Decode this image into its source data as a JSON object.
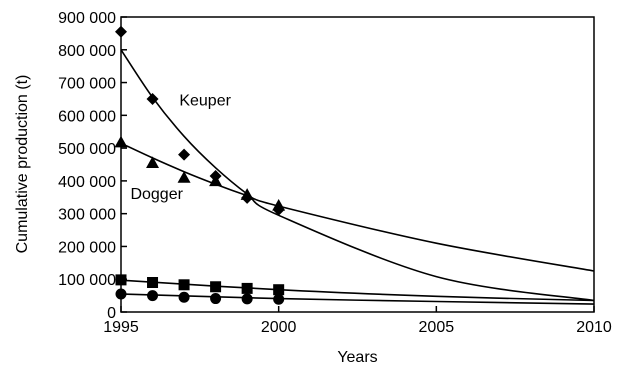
{
  "chart_data": {
    "type": "scatter",
    "title": "",
    "xlabel": "Years",
    "ylabel": "Cumulative production (t)",
    "xlim": [
      1995,
      2010
    ],
    "ylim": [
      0,
      900000
    ],
    "x_ticks": [
      1995,
      2000,
      2005,
      2010
    ],
    "x_tick_labels": [
      "1995",
      "2000",
      "2005",
      "2010"
    ],
    "y_ticks": [
      0,
      100000,
      200000,
      300000,
      400000,
      500000,
      600000,
      700000,
      800000,
      900000
    ],
    "y_tick_labels": [
      "0",
      "100 000",
      "200 000",
      "300 000",
      "400 000",
      "500 000",
      "600 000",
      "700 000",
      "800 000",
      "900 000"
    ],
    "grid": false,
    "legend": "none",
    "annotations": [
      {
        "text": "Keuper",
        "x": 1996.85,
        "y": 648000
      },
      {
        "text": "Dogger",
        "x": 1995.3,
        "y": 363000
      }
    ],
    "series": [
      {
        "marker": "diamond",
        "x": [
          1995,
          1996,
          1997,
          1998,
          1999,
          2000
        ],
        "y": [
          855000,
          650000,
          480000,
          415000,
          348000,
          312000
        ],
        "fit": {
          "x": [
            1995,
            1996,
            1997,
            1998,
            1999,
            2000,
            2005,
            2010
          ],
          "y": [
            800000,
            655000,
            536000,
            440000,
            360000,
            295000,
            108000,
            35000
          ]
        }
      },
      {
        "marker": "triangle",
        "x": [
          1995,
          1996,
          1997,
          1998,
          1999,
          2000
        ],
        "y": [
          518000,
          455000,
          410000,
          400000,
          358000,
          325000
        ],
        "fit": {
          "x": [
            1995,
            1996,
            1997,
            1998,
            1999,
            2000,
            2005,
            2010
          ],
          "y": [
            515000,
            470000,
            428000,
            390000,
            355000,
            323000,
            210000,
            125000
          ]
        }
      },
      {
        "marker": "square",
        "x": [
          1995,
          1996,
          1997,
          1998,
          1999,
          2000
        ],
        "y": [
          98000,
          90000,
          83000,
          77000,
          72000,
          68000
        ],
        "fit": {
          "x": [
            1995,
            2000,
            2005,
            2010
          ],
          "y": [
            97000,
            68000,
            48000,
            35000
          ]
        }
      },
      {
        "marker": "circle",
        "x": [
          1995,
          1996,
          1997,
          1998,
          1999,
          2000
        ],
        "y": [
          55000,
          50000,
          45000,
          41000,
          40000,
          39000
        ],
        "fit": {
          "x": [
            1995,
            2000,
            2005,
            2010
          ],
          "y": [
            55000,
            41000,
            32000,
            24000
          ]
        }
      }
    ]
  }
}
